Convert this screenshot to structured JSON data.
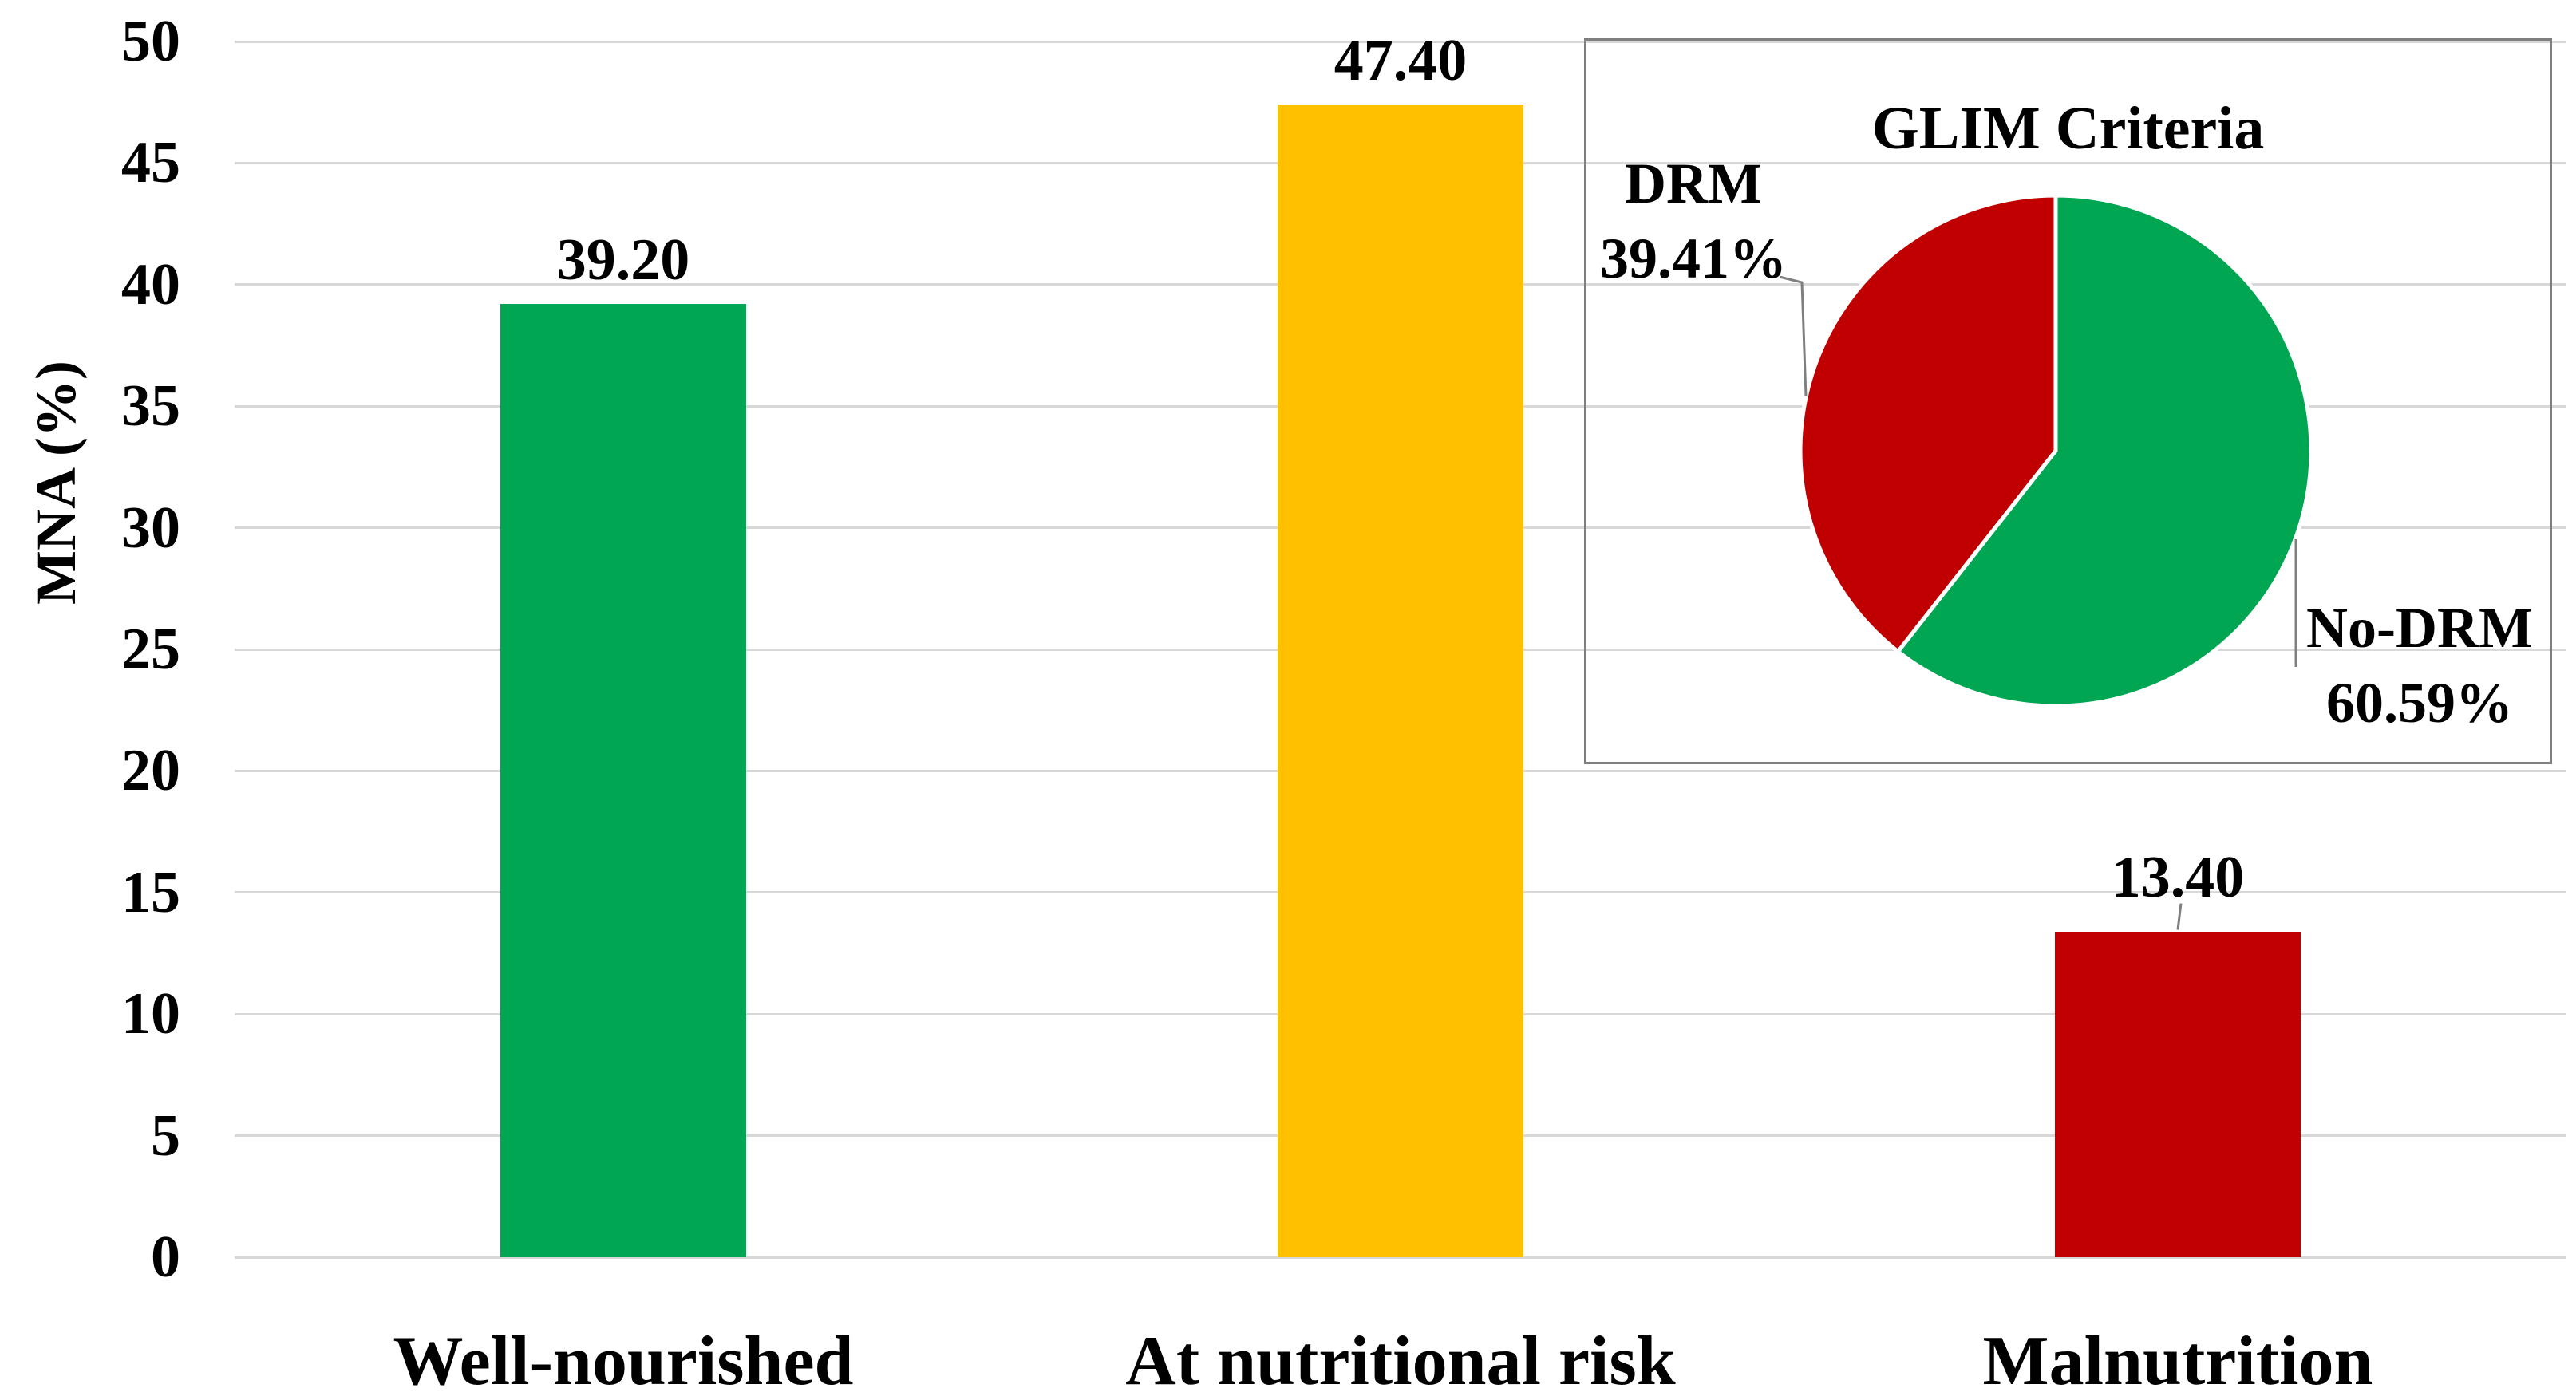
{
  "figure": {
    "background": "#FFFFFF",
    "text_color": "#000000",
    "gridline_color": "#D8D8D8",
    "inset_border_color": "#7F7F7F",
    "leader_line_color": "#7F7F7F"
  },
  "chart_data": [
    {
      "type": "bar",
      "ylabel": "MNA (%)",
      "xlabel": "",
      "ylim": [
        0,
        50
      ],
      "ytick_step": 5,
      "yticks": [
        "0",
        "5",
        "10",
        "15",
        "20",
        "25",
        "30",
        "35",
        "40",
        "45",
        "50"
      ],
      "grid": true,
      "categories": [
        "Well-nourished",
        "At nutritional risk",
        "Malnutrition"
      ],
      "values": [
        39.2,
        47.4,
        13.4
      ],
      "value_labels": [
        "39.20",
        "47.40",
        "13.40"
      ],
      "bar_colors": [
        "#00A651",
        "#FFC000",
        "#C00000"
      ],
      "leader_line_on_label": [
        false,
        false,
        true
      ]
    },
    {
      "type": "pie",
      "title": "GLIM Criteria",
      "start_angle_deg": 0,
      "clockwise": true,
      "legend_position": "callout-labels",
      "slices": [
        {
          "label": "No-DRM",
          "pct_label": "60.59%",
          "value": 60.59,
          "color": "#00A651"
        },
        {
          "label": "DRM",
          "pct_label": "39.41%",
          "value": 39.41,
          "color": "#C00000"
        }
      ]
    }
  ]
}
